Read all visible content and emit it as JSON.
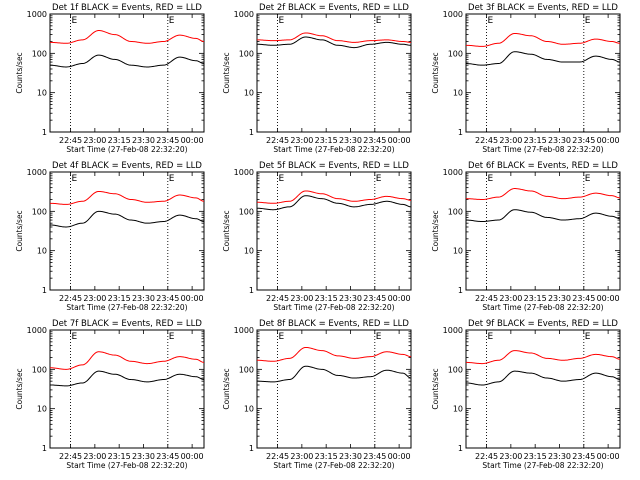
{
  "chart_data": {
    "type": "line",
    "layout": "3x3 grid of panels",
    "x_label": "Start Time (27-Feb-08 22:32:20)",
    "y_label": "Counts/sec",
    "y_scale": "log",
    "y_ticks": [
      "1",
      "10",
      "100",
      "1000"
    ],
    "ylim": [
      1,
      1000
    ],
    "x_ticks": [
      "22:45",
      "23:00",
      "23:15",
      "23:30",
      "23:45",
      "00:00"
    ],
    "x_tick_minutes": [
      12.67,
      27.67,
      42.67,
      57.67,
      72.67,
      87.67
    ],
    "xlim_minutes": [
      0,
      95
    ],
    "vertical_markers": [
      {
        "label": "E",
        "minute": 12.67
      },
      {
        "label": "E",
        "minute": 72.67
      }
    ],
    "series_colors": {
      "Events": "#000000",
      "LLD": "#ff0000"
    },
    "panels": [
      {
        "title": "Det 1f BLACK = Events, RED = LLD",
        "x_minutes": [
          0,
          10,
          20,
          30,
          40,
          50,
          60,
          70,
          80,
          90,
          95
        ],
        "series": [
          {
            "name": "LLD",
            "values": [
              190,
              180,
              220,
              380,
              300,
              200,
              180,
              200,
              290,
              240,
              200
            ]
          },
          {
            "name": "Events",
            "values": [
              50,
              45,
              55,
              90,
              70,
              50,
              45,
              50,
              80,
              65,
              55
            ]
          }
        ]
      },
      {
        "title": "Det 2f BLACK = Events, RED = LLD",
        "x_minutes": [
          0,
          10,
          20,
          30,
          40,
          50,
          60,
          70,
          80,
          90,
          95
        ],
        "series": [
          {
            "name": "LLD",
            "values": [
              220,
              210,
              220,
              330,
              280,
              210,
              190,
              210,
              220,
              200,
              190
            ]
          },
          {
            "name": "Events",
            "values": [
              170,
              160,
              170,
              260,
              220,
              160,
              140,
              170,
              190,
              170,
              160
            ]
          }
        ]
      },
      {
        "title": "Det 3f BLACK = Events, RED = LLD",
        "x_minutes": [
          0,
          10,
          20,
          30,
          40,
          50,
          60,
          70,
          80,
          90,
          95
        ],
        "series": [
          {
            "name": "LLD",
            "values": [
              160,
              150,
              180,
              320,
              280,
              200,
              170,
              180,
              230,
              200,
              180
            ]
          },
          {
            "name": "Events",
            "values": [
              55,
              50,
              55,
              110,
              95,
              70,
              60,
              60,
              85,
              70,
              60
            ]
          }
        ]
      },
      {
        "title": "Det 4f BLACK = Events, RED = LLD",
        "x_minutes": [
          0,
          10,
          20,
          30,
          40,
          50,
          60,
          70,
          80,
          90,
          95
        ],
        "series": [
          {
            "name": "LLD",
            "values": [
              160,
              150,
              180,
              320,
              280,
              200,
              170,
              180,
              260,
              220,
              180
            ]
          },
          {
            "name": "Events",
            "values": [
              45,
              40,
              50,
              100,
              85,
              60,
              50,
              55,
              80,
              65,
              55
            ]
          }
        ]
      },
      {
        "title": "Det 5f BLACK = Events, RED = LLD",
        "x_minutes": [
          0,
          10,
          20,
          30,
          40,
          50,
          60,
          70,
          80,
          90,
          95
        ],
        "series": [
          {
            "name": "LLD",
            "values": [
              170,
              160,
              180,
              330,
              280,
              210,
              180,
              200,
              240,
              210,
              190
            ]
          },
          {
            "name": "Events",
            "values": [
              120,
              110,
              130,
              250,
              210,
              160,
              130,
              150,
              180,
              150,
              130
            ]
          }
        ]
      },
      {
        "title": "Det 6f BLACK = Events, RED = LLD",
        "x_minutes": [
          0,
          10,
          20,
          30,
          40,
          50,
          60,
          70,
          80,
          90,
          95
        ],
        "series": [
          {
            "name": "LLD",
            "values": [
              210,
              200,
              230,
              380,
              330,
              240,
              210,
              230,
              290,
              250,
              220
            ]
          },
          {
            "name": "Events",
            "values": [
              60,
              55,
              60,
              110,
              95,
              70,
              60,
              65,
              90,
              75,
              65
            ]
          }
        ]
      },
      {
        "title": "Det 7f BLACK = Events, RED = LLD",
        "x_minutes": [
          0,
          10,
          20,
          30,
          40,
          50,
          60,
          70,
          80,
          90,
          95
        ],
        "series": [
          {
            "name": "LLD",
            "values": [
              110,
              100,
              130,
              280,
              230,
              160,
              140,
              160,
              210,
              180,
              150
            ]
          },
          {
            "name": "Events",
            "values": [
              40,
              38,
              45,
              90,
              75,
              55,
              48,
              55,
              75,
              65,
              55
            ]
          }
        ]
      },
      {
        "title": "Det 8f BLACK = Events, RED = LLD",
        "x_minutes": [
          0,
          10,
          20,
          30,
          40,
          50,
          60,
          70,
          80,
          90,
          95
        ],
        "series": [
          {
            "name": "LLD",
            "values": [
              170,
              160,
              190,
              360,
              300,
              220,
              190,
              210,
              280,
              240,
              210
            ]
          },
          {
            "name": "Events",
            "values": [
              50,
              48,
              55,
              120,
              100,
              70,
              60,
              65,
              95,
              80,
              60
            ]
          }
        ]
      },
      {
        "title": "Det 9f BLACK = Events, RED = LLD",
        "x_minutes": [
          0,
          10,
          20,
          30,
          40,
          50,
          60,
          70,
          80,
          90,
          95
        ],
        "series": [
          {
            "name": "LLD",
            "values": [
              150,
              140,
              170,
              300,
              260,
              190,
              170,
              190,
              240,
              210,
              180
            ]
          },
          {
            "name": "Events",
            "values": [
              45,
              40,
              48,
              90,
              80,
              60,
              50,
              55,
              80,
              65,
              55
            ]
          }
        ]
      }
    ]
  }
}
